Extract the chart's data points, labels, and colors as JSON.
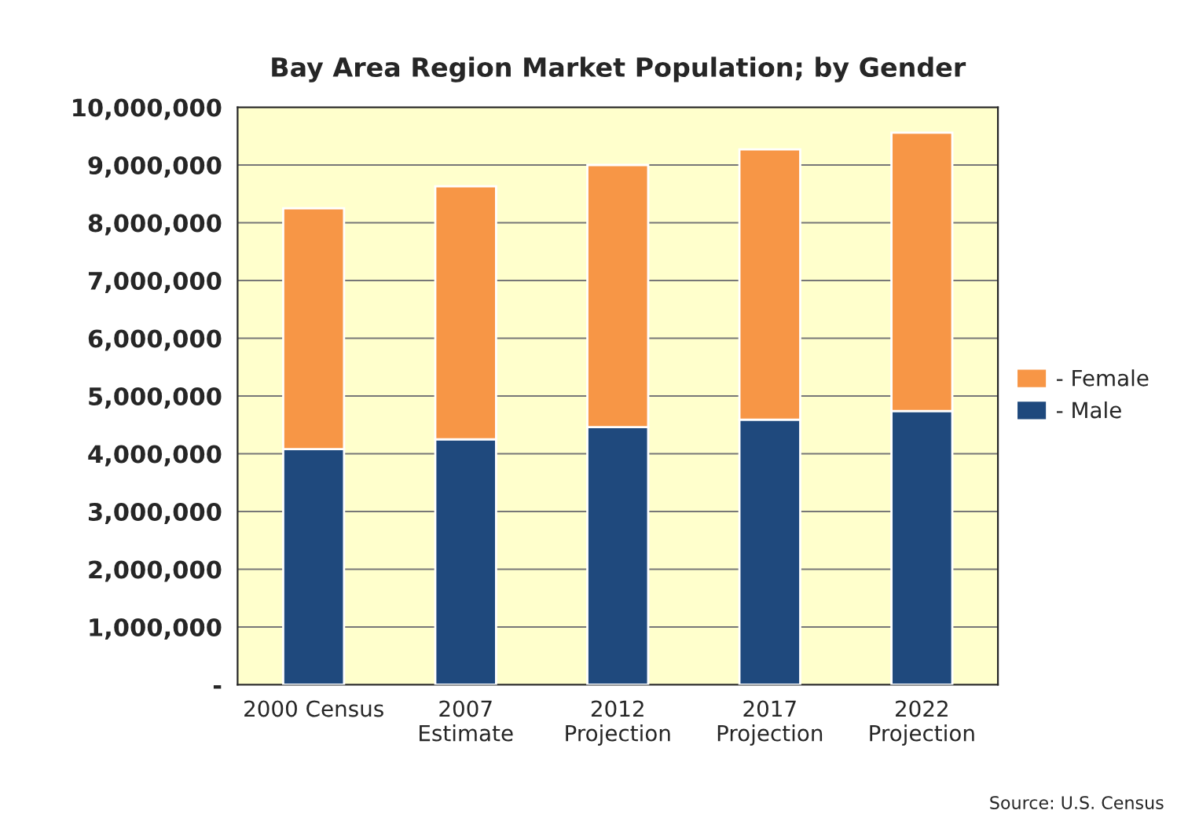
{
  "chart_data": {
    "type": "bar",
    "title": "Bay Area Region Market Population; by Gender",
    "categories": [
      "2000 Census",
      "2007\nEstimate",
      "2012\nProjection",
      "2017\nProjection",
      "2022\nProjection"
    ],
    "stacked": true,
    "series": [
      {
        "name": "- Male",
        "color": "#1f497d",
        "values": [
          4080000,
          4250000,
          4460000,
          4590000,
          4740000
        ]
      },
      {
        "name": "- Female",
        "color": "#f79646",
        "values": [
          4170000,
          4380000,
          4540000,
          4680000,
          4820000
        ]
      }
    ],
    "ylim": [
      0,
      10000000
    ],
    "yticks": [
      {
        "value": 0,
        "label": "-"
      },
      {
        "value": 1000000,
        "label": "1,000,000"
      },
      {
        "value": 2000000,
        "label": "2,000,000"
      },
      {
        "value": 3000000,
        "label": "3,000,000"
      },
      {
        "value": 4000000,
        "label": "4,000,000"
      },
      {
        "value": 5000000,
        "label": "5,000,000"
      },
      {
        "value": 6000000,
        "label": "6,000,000"
      },
      {
        "value": 7000000,
        "label": "7,000,000"
      },
      {
        "value": 8000000,
        "label": "8,000,000"
      },
      {
        "value": 9000000,
        "label": "9,000,000"
      },
      {
        "value": 10000000,
        "label": "10,000,000"
      }
    ],
    "grid": "y",
    "legend": "right",
    "annotations": [
      "Source: U.S. Census"
    ]
  }
}
